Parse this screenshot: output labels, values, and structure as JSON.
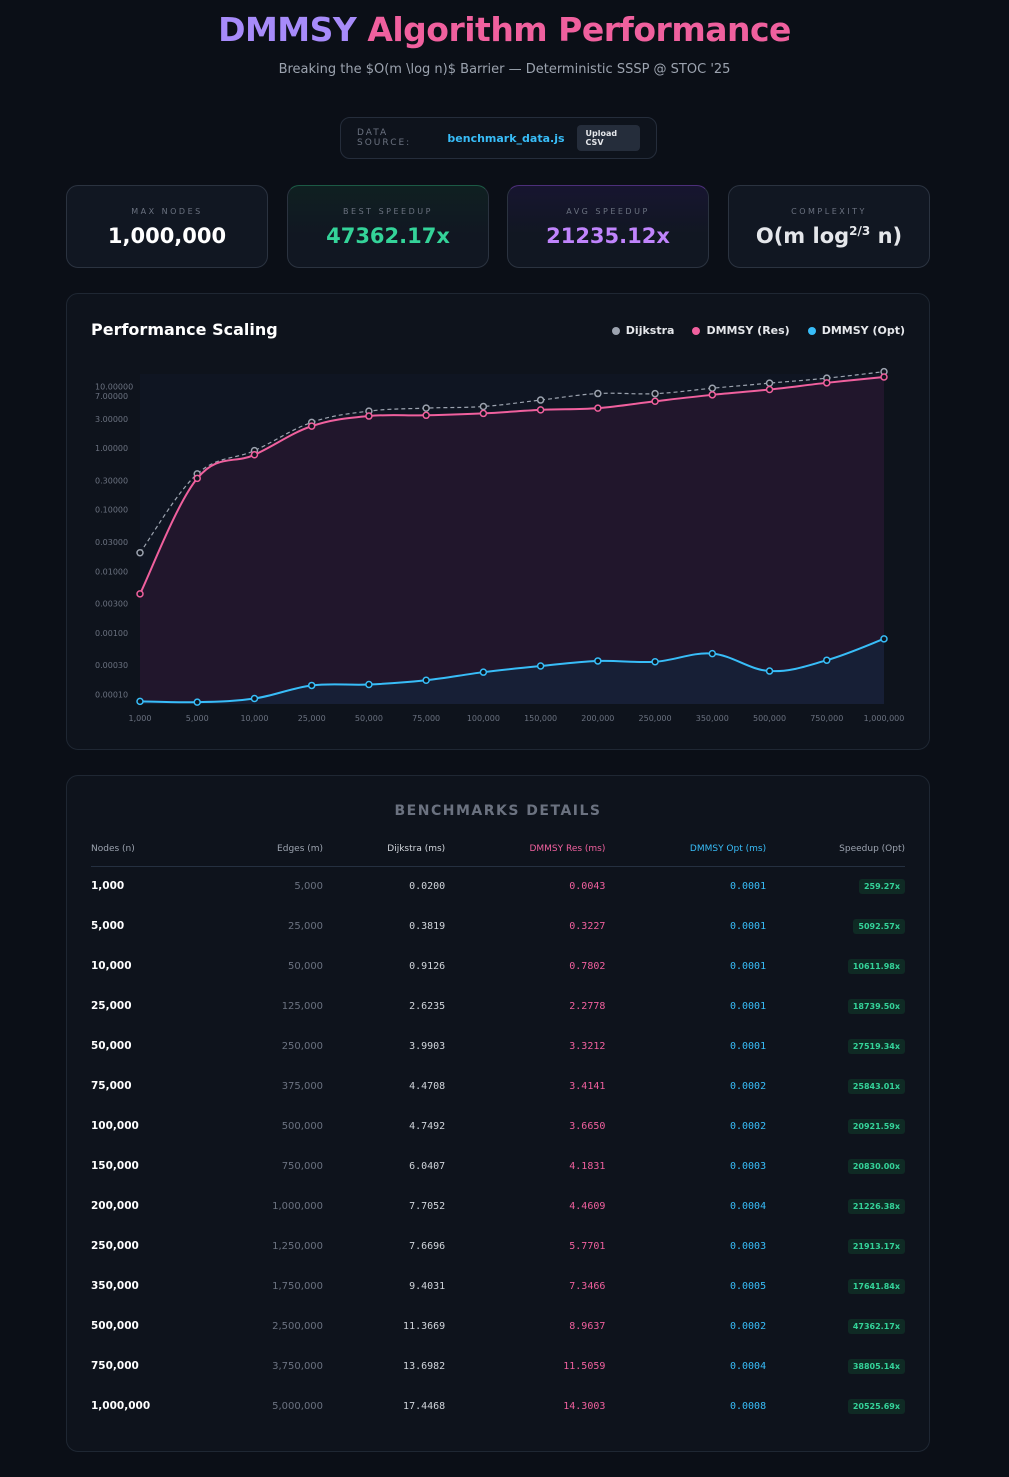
{
  "header": {
    "title_part1": "DMMSY",
    "title_part2": "Algorithm Performance",
    "subtitle": "Breaking the $O(m \\log n)$ Barrier — Deterministic SSSP @ STOC '25"
  },
  "source": {
    "label": "DATA SOURCE:",
    "file": "benchmark_data.js",
    "upload_label": "Upload CSV"
  },
  "stats": [
    {
      "label": "MAX NODES",
      "value": "1,000,000",
      "color": "#ffffff"
    },
    {
      "label": "BEST SPEEDUP",
      "value": "47362.17x",
      "color": "#34d399"
    },
    {
      "label": "AVG SPEEDUP",
      "value": "21235.12x",
      "color": "#c084fc"
    },
    {
      "label": "COMPLEXITY",
      "value": "O(m log",
      "sup": "2/3",
      "suffix": " n)",
      "color": "#e5e7eb"
    }
  ],
  "colors": {
    "dijkstra": "#9ca3af",
    "dmmsy_res": "#f0609e",
    "dmmsy_opt": "#38bdf8",
    "accent_green": "#34d399"
  },
  "chart_data": {
    "type": "line",
    "title": "Performance Scaling",
    "y_scale": "log",
    "ylim": [
      7e-05,
      16
    ],
    "y_ticks": [
      "10.00000",
      "7.00000",
      "3.00000",
      "1.00000",
      "0.30000",
      "0.10000",
      "0.03000",
      "0.01000",
      "0.00300",
      "0.00100",
      "0.00030",
      "0.00010"
    ],
    "categories": [
      "1,000",
      "5,000",
      "10,000",
      "25,000",
      "50,000",
      "75,000",
      "100,000",
      "150,000",
      "200,000",
      "250,000",
      "350,000",
      "500,000",
      "750,000",
      "1,000,000"
    ],
    "legend_position": "top-right",
    "series": [
      {
        "name": "Dijkstra",
        "style": "dashed",
        "values": [
          0.02,
          0.3819,
          0.9126,
          2.6235,
          3.9903,
          4.4708,
          4.7492,
          6.0407,
          7.7052,
          7.6696,
          9.4031,
          11.3669,
          13.6982,
          17.4468
        ]
      },
      {
        "name": "DMMSY (Res)",
        "style": "solid",
        "values": [
          0.0043,
          0.3227,
          0.7802,
          2.2778,
          3.3212,
          3.4141,
          3.665,
          4.1831,
          4.4609,
          5.7701,
          7.3466,
          8.9637,
          11.5059,
          14.3003
        ]
      },
      {
        "name": "DMMSY (Opt)",
        "style": "solid",
        "values": [
          7.72e-05,
          7.5e-05,
          8.6e-05,
          0.00014,
          0.000145,
          0.00017,
          0.00023,
          0.00029,
          0.00035,
          0.00034,
          0.00046,
          0.00024,
          0.00036,
          0.0008
        ]
      }
    ]
  },
  "table": {
    "title": "BENCHMARKS DETAILS",
    "columns": [
      "Nodes (n)",
      "Edges (m)",
      "Dijkstra (ms)",
      "DMMSY Res (ms)",
      "DMMSY Opt (ms)",
      "Speedup (Opt)"
    ],
    "rows": [
      [
        "1,000",
        "5,000",
        "0.0200",
        "0.0043",
        "0.0001",
        "259.27x"
      ],
      [
        "5,000",
        "25,000",
        "0.3819",
        "0.3227",
        "0.0001",
        "5092.57x"
      ],
      [
        "10,000",
        "50,000",
        "0.9126",
        "0.7802",
        "0.0001",
        "10611.98x"
      ],
      [
        "25,000",
        "125,000",
        "2.6235",
        "2.2778",
        "0.0001",
        "18739.50x"
      ],
      [
        "50,000",
        "250,000",
        "3.9903",
        "3.3212",
        "0.0001",
        "27519.34x"
      ],
      [
        "75,000",
        "375,000",
        "4.4708",
        "3.4141",
        "0.0002",
        "25843.01x"
      ],
      [
        "100,000",
        "500,000",
        "4.7492",
        "3.6650",
        "0.0002",
        "20921.59x"
      ],
      [
        "150,000",
        "750,000",
        "6.0407",
        "4.1831",
        "0.0003",
        "20830.00x"
      ],
      [
        "200,000",
        "1,000,000",
        "7.7052",
        "4.4609",
        "0.0004",
        "21226.38x"
      ],
      [
        "250,000",
        "1,250,000",
        "7.6696",
        "5.7701",
        "0.0003",
        "21913.17x"
      ],
      [
        "350,000",
        "1,750,000",
        "9.4031",
        "7.3466",
        "0.0005",
        "17641.84x"
      ],
      [
        "500,000",
        "2,500,000",
        "11.3669",
        "8.9637",
        "0.0002",
        "47362.17x"
      ],
      [
        "750,000",
        "3,750,000",
        "13.6982",
        "11.5059",
        "0.0004",
        "38805.14x"
      ],
      [
        "1,000,000",
        "5,000,000",
        "17.4468",
        "14.3003",
        "0.0008",
        "20525.69x"
      ]
    ]
  }
}
